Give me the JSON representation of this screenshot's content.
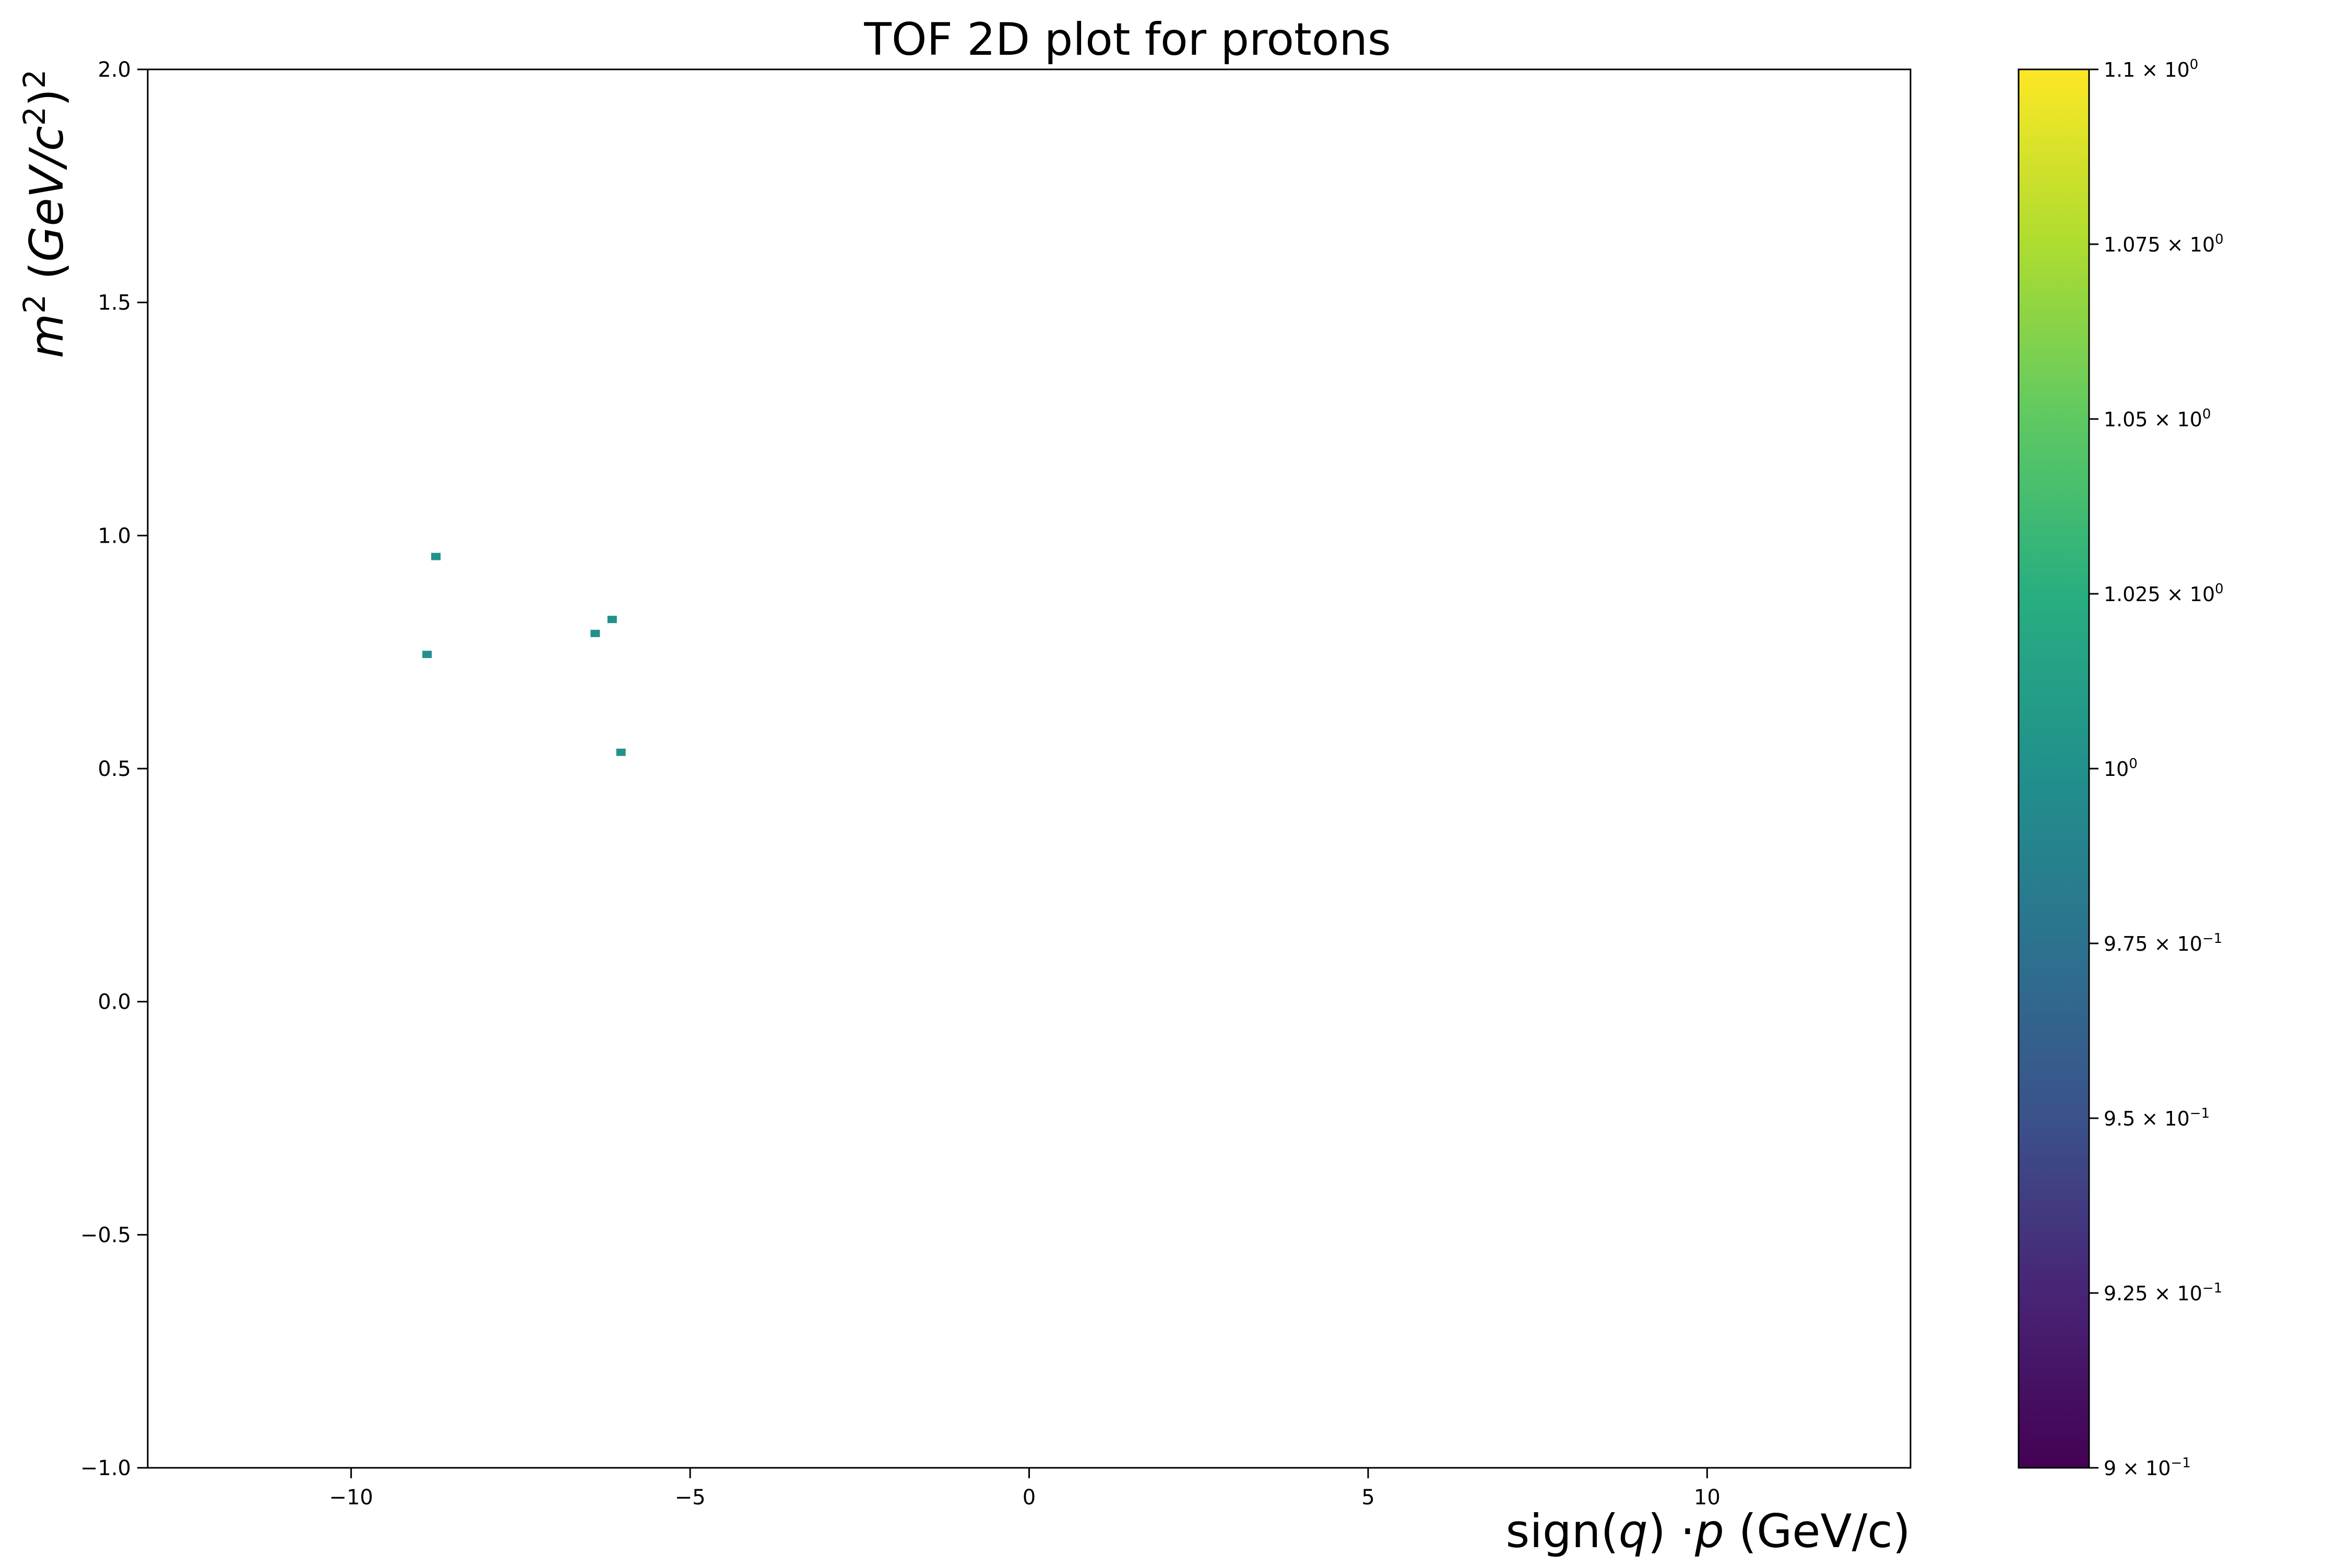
{
  "chart_data": {
    "type": "heatmap",
    "title": "TOF 2D plot for protons",
    "xlabel": {
      "pre": "sign(",
      "var": "q",
      "mid": ") ·",
      "var2": "p",
      "post": " (GeV/c)"
    },
    "ylabel": {
      "var": "m",
      "sup1": "2",
      "mid": " (",
      "unit": "GeV/c",
      "sup2": "2",
      "close": ")",
      "sup3": "2"
    },
    "xlim": [
      -13,
      13
    ],
    "ylim": [
      -1.0,
      2.0
    ],
    "x_ticks": [
      {
        "v": -10,
        "label": "−10"
      },
      {
        "v": -5,
        "label": "−5"
      },
      {
        "v": 0,
        "label": "0"
      },
      {
        "v": 5,
        "label": "5"
      },
      {
        "v": 10,
        "label": "10"
      }
    ],
    "y_ticks": [
      {
        "v": -1.0,
        "label": "−1.0"
      },
      {
        "v": -0.5,
        "label": "−0.5"
      },
      {
        "v": 0.0,
        "label": "0.0"
      },
      {
        "v": 0.5,
        "label": "0.5"
      },
      {
        "v": 1.0,
        "label": "1.0"
      },
      {
        "v": 1.5,
        "label": "1.5"
      },
      {
        "v": 2.0,
        "label": "2.0"
      }
    ],
    "points": [
      {
        "x": -8.75,
        "y": 0.955,
        "count": 1
      },
      {
        "x": -8.88,
        "y": 0.745,
        "count": 1
      },
      {
        "x": -6.4,
        "y": 0.79,
        "count": 1
      },
      {
        "x": -6.15,
        "y": 0.82,
        "count": 1
      },
      {
        "x": -6.02,
        "y": 0.535,
        "count": 1
      }
    ],
    "colorbar": {
      "colormap": "viridis",
      "range": [
        0.9,
        1.1
      ],
      "ticks": [
        {
          "v": 1.1,
          "m": "1.1",
          "e": "0"
        },
        {
          "v": 1.075,
          "m": "1.075",
          "e": "0"
        },
        {
          "v": 1.05,
          "m": "1.05",
          "e": "0"
        },
        {
          "v": 1.025,
          "m": "1.025",
          "e": "0"
        },
        {
          "v": 1.0,
          "m": "",
          "e": "0"
        },
        {
          "v": 0.975,
          "m": "9.75",
          "e": "−1"
        },
        {
          "v": 0.95,
          "m": "9.5",
          "e": "−1"
        },
        {
          "v": 0.925,
          "m": "9.25",
          "e": "−1"
        },
        {
          "v": 0.9,
          "m": "9",
          "e": "−1"
        }
      ]
    },
    "grid": false,
    "legend": "none",
    "colors": {
      "viridis_0": "#440154",
      "viridis_25": "#3b528b",
      "viridis_50": "#21918c",
      "viridis_75": "#5ec962",
      "viridis_100": "#fde725",
      "point": "#21918c"
    }
  }
}
